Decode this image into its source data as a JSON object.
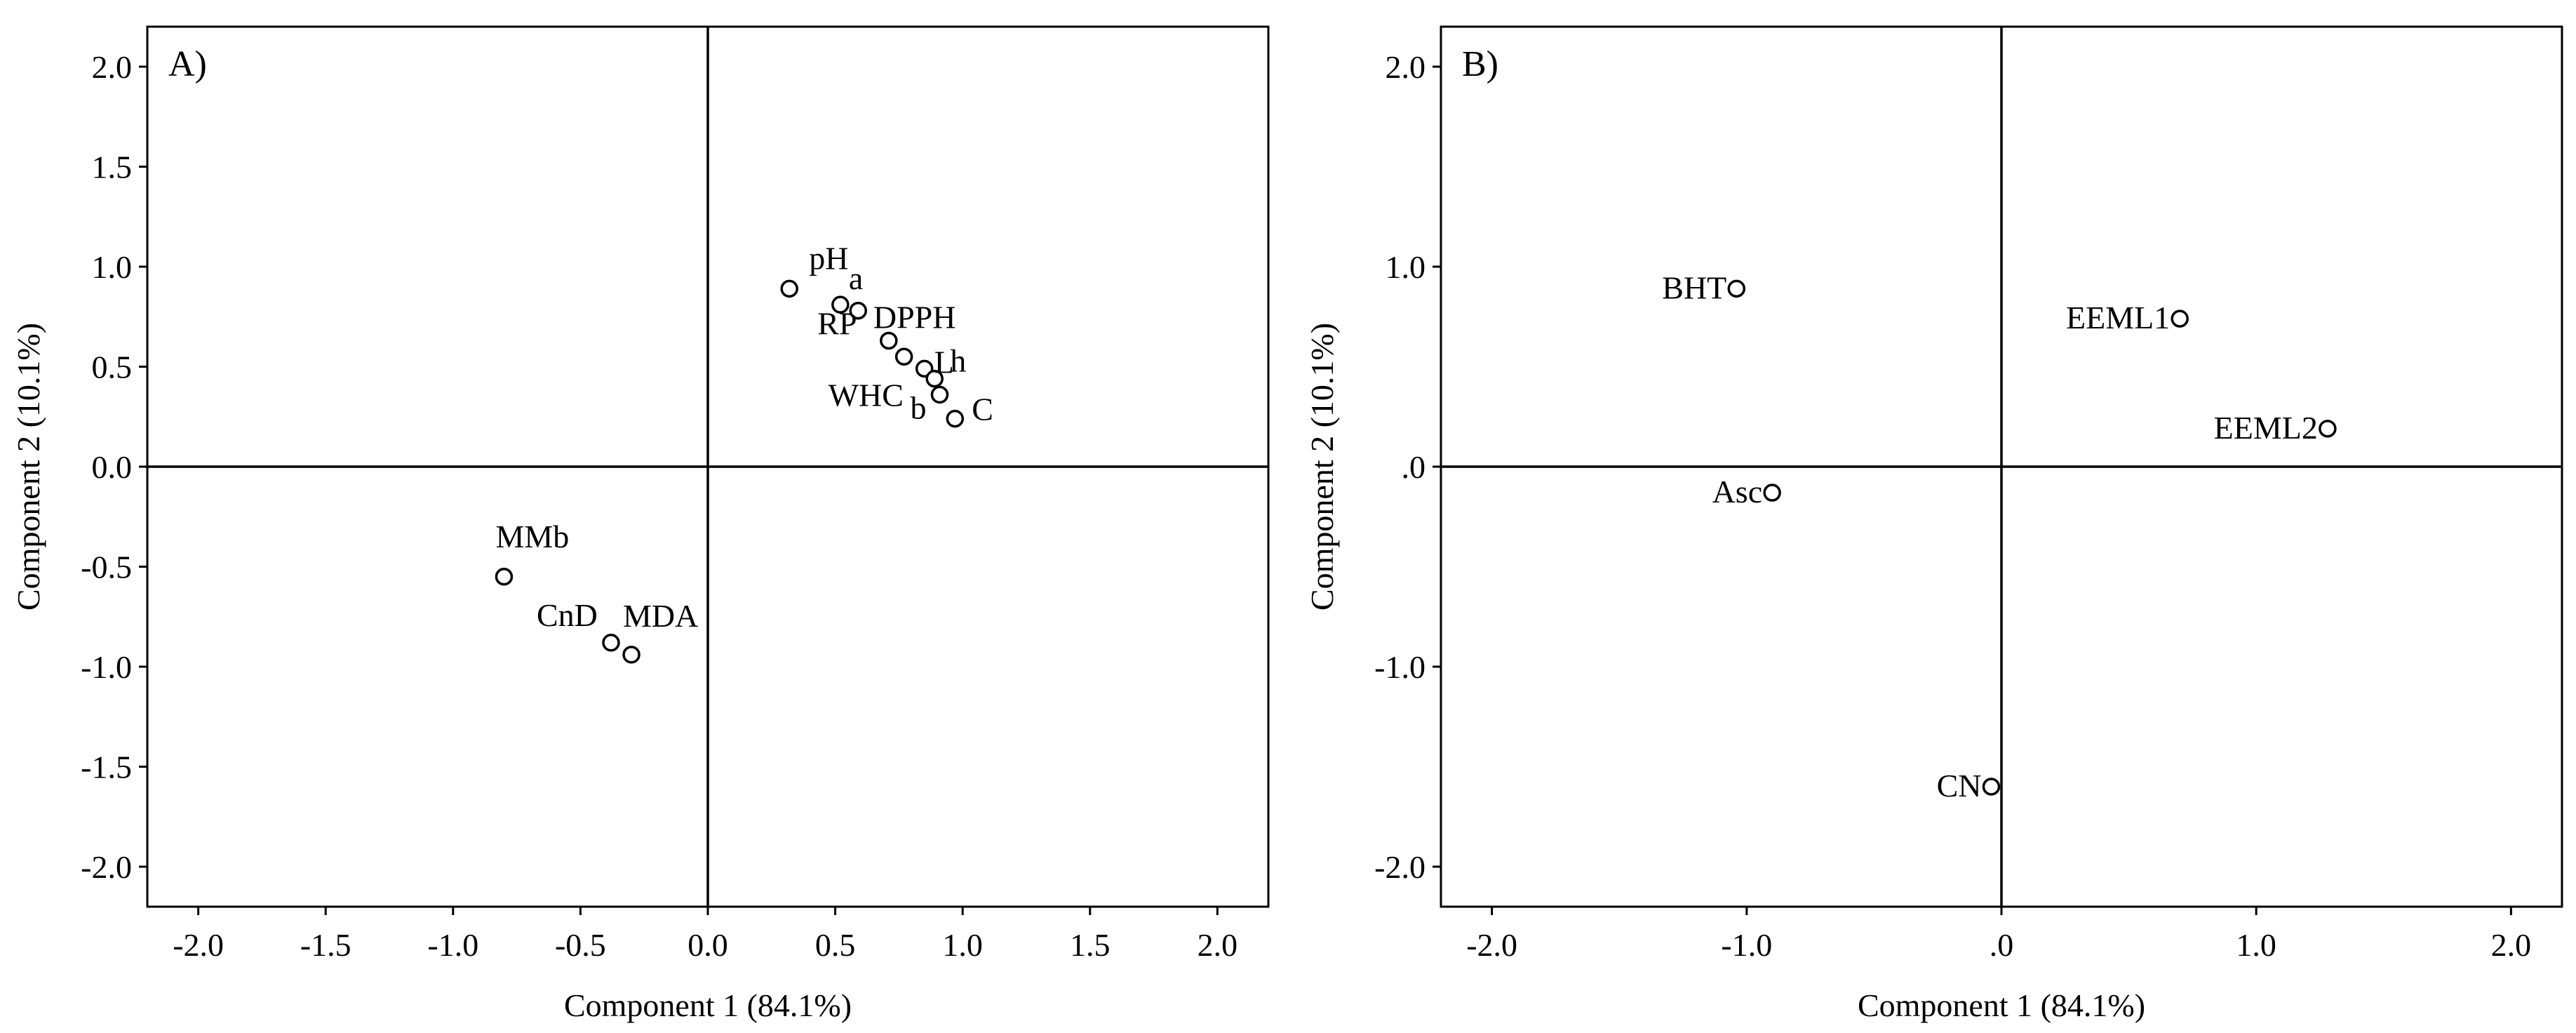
{
  "chart_data": [
    {
      "type": "scatter",
      "panel_label": "A)",
      "xlabel": "Component 1 (84.1%)",
      "ylabel": "Component 2 (10.1%)",
      "xlim": [
        -2.2,
        2.2
      ],
      "ylim": [
        -2.2,
        2.2
      ],
      "x_ticks": [
        -2.0,
        -1.5,
        -1.0,
        -0.5,
        0.0,
        0.5,
        1.0,
        1.5,
        2.0
      ],
      "x_tick_labels": [
        "-2.0",
        "-1.5",
        "-1.0",
        "-0.5",
        "0.0",
        "0.5",
        "1.0",
        "1.5",
        "2.0"
      ],
      "y_ticks": [
        2.0,
        1.5,
        1.0,
        0.5,
        0.0,
        -0.5,
        -1.0,
        -1.5,
        -2.0
      ],
      "y_tick_labels": [
        "2.0",
        "1.5",
        "1.0",
        "0.5",
        "0.0",
        "-0.5",
        "-1.0",
        "-1.5",
        "-2.0"
      ],
      "grid": false,
      "points": [
        {
          "label": "pH",
          "x": 0.32,
          "y": 0.89
        },
        {
          "label": "a",
          "x": 0.52,
          "y": 0.81
        },
        {
          "label": "RP",
          "x": 0.59,
          "y": 0.78
        },
        {
          "label": "DPPH",
          "x": 0.71,
          "y": 0.63
        },
        {
          "label": "WHC",
          "x": 0.77,
          "y": 0.55
        },
        {
          "label": "L",
          "x": 0.85,
          "y": 0.49
        },
        {
          "label": "h",
          "x": 0.89,
          "y": 0.44
        },
        {
          "label": "b",
          "x": 0.91,
          "y": 0.36
        },
        {
          "label": "C",
          "x": 0.97,
          "y": 0.24
        },
        {
          "label": "MMb",
          "x": -0.8,
          "y": -0.55
        },
        {
          "label": "CnD",
          "x": -0.38,
          "y": -0.88
        },
        {
          "label": "MDA",
          "x": -0.3,
          "y": -0.94
        }
      ]
    },
    {
      "type": "scatter",
      "panel_label": "B)",
      "xlabel": "Component 1 (84.1%)",
      "ylabel": "Component 2 (10.1%)",
      "xlim": [
        -2.2,
        2.2
      ],
      "ylim": [
        -2.2,
        2.2
      ],
      "x_ticks": [
        -2.0,
        -1.0,
        0.0,
        1.0,
        2.0
      ],
      "x_tick_labels": [
        "-2.0",
        "-1.0",
        ".0",
        "1.0",
        "2.0"
      ],
      "y_ticks": [
        2.0,
        1.0,
        0.0,
        -1.0,
        -2.0
      ],
      "y_tick_labels": [
        "2.0",
        "1.0",
        ".0",
        "-1.0",
        "-2.0"
      ],
      "grid": false,
      "points": [
        {
          "label": "BHT",
          "x": -1.04,
          "y": 0.89
        },
        {
          "label": "EEML1",
          "x": 0.7,
          "y": 0.74
        },
        {
          "label": "EEML2",
          "x": 1.28,
          "y": 0.19
        },
        {
          "label": "Asc",
          "x": -0.9,
          "y": -0.13
        },
        {
          "label": "CN",
          "x": -0.04,
          "y": -1.6
        }
      ]
    }
  ]
}
